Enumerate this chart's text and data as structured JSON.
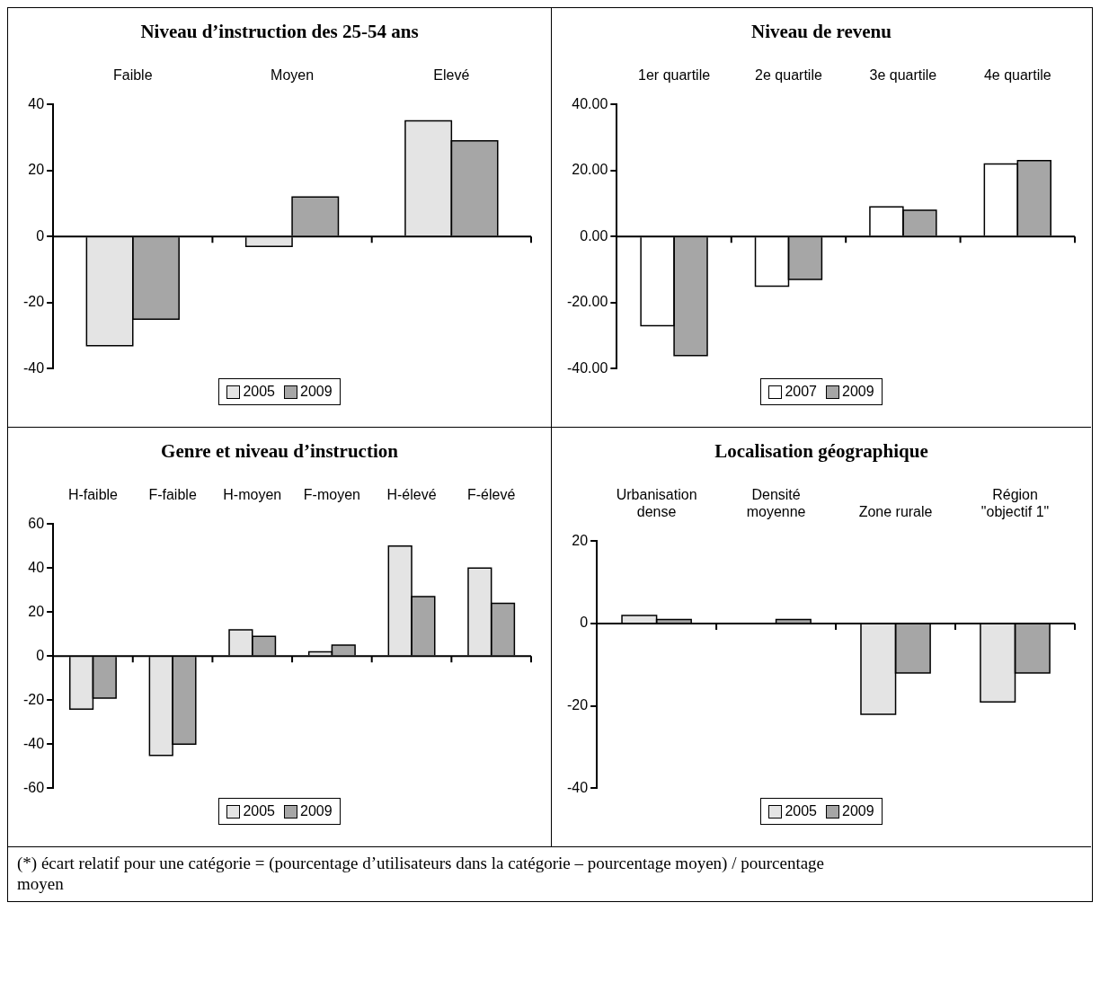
{
  "chart_data": [
    {
      "type": "bar",
      "title": "Niveau d’instruction des 25-54 ans",
      "categories": [
        "Faible",
        "Moyen",
        "Elevé"
      ],
      "series": [
        {
          "name": "2005",
          "color": "#e4e4e4",
          "values": [
            -33,
            -3,
            35
          ]
        },
        {
          "name": "2009",
          "color": "#a6a6a6",
          "values": [
            -25,
            12,
            29
          ]
        }
      ],
      "ylim": [
        -40,
        40
      ],
      "yticks": [
        -40,
        -20,
        0,
        20,
        40
      ],
      "legend": "bottom"
    },
    {
      "type": "bar",
      "title": "Niveau de revenu",
      "categories": [
        "1er quartile",
        "2e quartile",
        "3e quartile",
        "4e quartile"
      ],
      "series": [
        {
          "name": "2007",
          "color": "#ffffff",
          "values": [
            -27,
            -15,
            9,
            22
          ]
        },
        {
          "name": "2009",
          "color": "#a6a6a6",
          "values": [
            -36,
            -13,
            8,
            23
          ]
        }
      ],
      "ylim": [
        -40,
        40
      ],
      "yticks": [
        {
          "value": -40,
          "label": "-40.00"
        },
        {
          "value": -20,
          "label": "-20.00"
        },
        {
          "value": 0,
          "label": "0.00"
        },
        {
          "value": 20,
          "label": "20.00"
        },
        {
          "value": 40,
          "label": "40.00"
        }
      ],
      "legend": "bottom"
    },
    {
      "type": "bar",
      "title": "Genre et niveau d’instruction",
      "categories": [
        "H-faible",
        "F-faible",
        "H-moyen",
        "F-moyen",
        "H-élevé",
        "F-élevé"
      ],
      "series": [
        {
          "name": "2005",
          "color": "#e4e4e4",
          "values": [
            -24,
            -45,
            12,
            2,
            50,
            40
          ]
        },
        {
          "name": "2009",
          "color": "#a6a6a6",
          "values": [
            -19,
            -40,
            9,
            5,
            27,
            24
          ]
        }
      ],
      "ylim": [
        -60,
        60
      ],
      "yticks": [
        -60,
        -40,
        -20,
        0,
        20,
        40,
        60
      ],
      "legend": "bottom"
    },
    {
      "type": "bar",
      "title": "Localisation géographique",
      "categories": [
        "Urbanisation\ndense",
        "Densité\nmoyenne",
        "Zone rurale",
        "Région\n\"objectif 1\""
      ],
      "series": [
        {
          "name": "2005",
          "color": "#e4e4e4",
          "values": [
            2,
            0,
            -22,
            -19
          ]
        },
        {
          "name": "2009",
          "color": "#a6a6a6",
          "values": [
            1,
            1,
            -12,
            -12
          ]
        }
      ],
      "ylim": [
        -40,
        20
      ],
      "yticks": [
        -40,
        -20,
        0,
        20
      ],
      "legend": "bottom",
      "annotations": [
        "(*) écart relatif pour une catégorie = (pourcentage d’utilisateurs dans la catégorie – pourcentage moyen) / pourcentage moyen"
      ]
    }
  ]
}
